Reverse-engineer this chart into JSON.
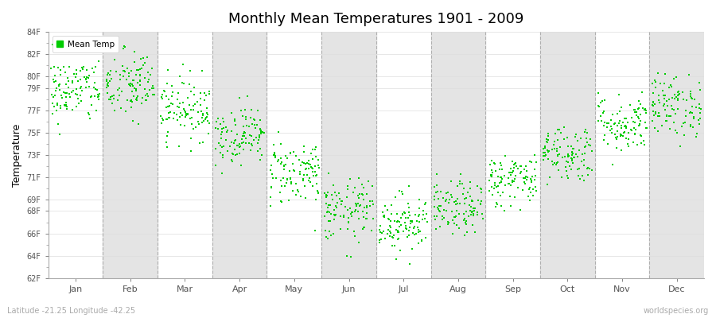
{
  "title": "Monthly Mean Temperatures 1901 - 2009",
  "ylabel": "Temperature",
  "subtitle_left": "Latitude -21.25 Longitude -42.25",
  "subtitle_right": "worldspecies.org",
  "legend_label": "Mean Temp",
  "dot_color": "#00cc00",
  "background_color": "#ffffff",
  "stripe_color": "#e4e4e4",
  "ylim_min": 62,
  "ylim_max": 84,
  "months": [
    "Jan",
    "Feb",
    "Mar",
    "Apr",
    "May",
    "Jun",
    "Jul",
    "Aug",
    "Sep",
    "Oct",
    "Nov",
    "Dec"
  ],
  "monthly_mean": [
    78.8,
    79.2,
    77.2,
    74.8,
    71.5,
    68.0,
    67.0,
    68.2,
    70.8,
    73.2,
    75.8,
    77.4
  ],
  "monthly_std": [
    1.5,
    1.6,
    1.4,
    1.3,
    1.5,
    1.4,
    1.3,
    1.2,
    1.2,
    1.3,
    1.3,
    1.4
  ],
  "n_years": 109,
  "seed": 42,
  "marker_size": 4,
  "ytick_vals": [
    84,
    82,
    80,
    79,
    77,
    75,
    73,
    71,
    69,
    68,
    66,
    64,
    62
  ]
}
